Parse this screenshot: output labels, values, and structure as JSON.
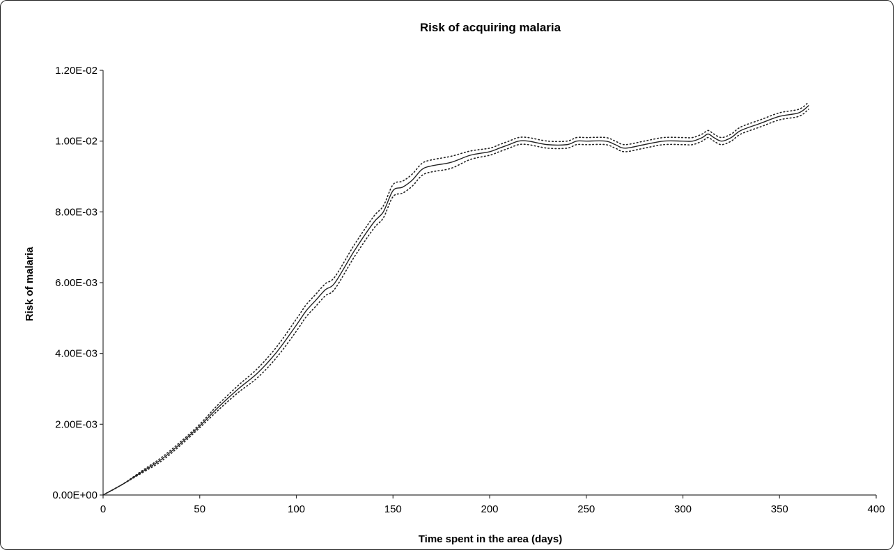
{
  "chart_data": {
    "type": "line",
    "title": "Risk of acquiring malaria",
    "xlabel": "Time spent in the area (days)",
    "ylabel": "Risk of malaria",
    "xlim": [
      0,
      400
    ],
    "ylim": [
      0,
      0.012
    ],
    "x_ticks": [
      0,
      50,
      100,
      150,
      200,
      250,
      300,
      350,
      400
    ],
    "x_tick_labels": [
      "0",
      "50",
      "100",
      "150",
      "200",
      "250",
      "300",
      "350",
      "400"
    ],
    "y_ticks": [
      0,
      0.002,
      0.004,
      0.006,
      0.008,
      0.01,
      0.012
    ],
    "y_tick_labels": [
      "0.00E+00",
      "2.00E-03",
      "4.00E-03",
      "6.00E-03",
      "8.00E-03",
      "1.00E-02",
      "1.20E-02"
    ],
    "grid": false,
    "legend": "none",
    "series": [
      {
        "style": "solid",
        "color": "#222222",
        "x": [
          0,
          10,
          20,
          30,
          40,
          50,
          60,
          70,
          80,
          90,
          100,
          105,
          110,
          115,
          120,
          130,
          140,
          145,
          150,
          155,
          160,
          165,
          170,
          180,
          190,
          200,
          205,
          210,
          215,
          220,
          230,
          240,
          245,
          250,
          260,
          265,
          270,
          280,
          290,
          300,
          305,
          310,
          313,
          316,
          320,
          325,
          330,
          340,
          350,
          360,
          365
        ],
        "y": [
          0,
          0.0003,
          0.00065,
          0.001,
          0.00145,
          0.00195,
          0.0025,
          0.003,
          0.00345,
          0.00405,
          0.0048,
          0.0052,
          0.0055,
          0.0058,
          0.006,
          0.0069,
          0.0077,
          0.008,
          0.0086,
          0.0087,
          0.0089,
          0.0092,
          0.0093,
          0.0094,
          0.0096,
          0.0097,
          0.0098,
          0.0099,
          0.01,
          0.01,
          0.0099,
          0.0099,
          0.01,
          0.01,
          0.01,
          0.0099,
          0.0098,
          0.0099,
          0.01,
          0.01,
          0.01,
          0.0101,
          0.0102,
          0.0101,
          0.01,
          0.0101,
          0.0103,
          0.0105,
          0.0107,
          0.0108,
          0.011
        ]
      },
      {
        "style": "dotted",
        "color": "#222222",
        "x": [
          0,
          10,
          20,
          30,
          40,
          50,
          60,
          70,
          80,
          90,
          100,
          105,
          110,
          115,
          120,
          130,
          140,
          145,
          150,
          155,
          160,
          165,
          170,
          180,
          190,
          200,
          205,
          210,
          215,
          220,
          230,
          240,
          245,
          250,
          260,
          265,
          270,
          280,
          290,
          300,
          305,
          310,
          313,
          316,
          320,
          325,
          330,
          340,
          350,
          360,
          365
        ],
        "y": [
          0,
          0.0003,
          0.00068,
          0.00105,
          0.0015,
          0.002,
          0.00258,
          0.0031,
          0.00358,
          0.0042,
          0.00497,
          0.00537,
          0.00567,
          0.00597,
          0.00617,
          0.00707,
          0.00787,
          0.00817,
          0.00877,
          0.00887,
          0.00907,
          0.00937,
          0.00947,
          0.00957,
          0.00972,
          0.0098,
          0.0099,
          0.01,
          0.0101,
          0.0101,
          0.01,
          0.01,
          0.0101,
          0.0101,
          0.0101,
          0.01,
          0.0099,
          0.01,
          0.0101,
          0.0101,
          0.0101,
          0.0102,
          0.0103,
          0.0102,
          0.0101,
          0.0102,
          0.0104,
          0.0106,
          0.0108,
          0.0109,
          0.0111
        ]
      },
      {
        "style": "dotted",
        "color": "#222222",
        "x": [
          0,
          10,
          20,
          30,
          40,
          50,
          60,
          70,
          80,
          90,
          100,
          105,
          110,
          115,
          120,
          130,
          140,
          145,
          150,
          155,
          160,
          165,
          170,
          180,
          190,
          200,
          205,
          210,
          215,
          220,
          230,
          240,
          245,
          250,
          260,
          265,
          270,
          280,
          290,
          300,
          305,
          310,
          313,
          316,
          320,
          325,
          330,
          340,
          350,
          360,
          365
        ],
        "y": [
          0,
          0.0003,
          0.00062,
          0.00095,
          0.0014,
          0.0019,
          0.00242,
          0.0029,
          0.00332,
          0.0039,
          0.00463,
          0.00503,
          0.00533,
          0.00563,
          0.00583,
          0.00673,
          0.00753,
          0.00783,
          0.00843,
          0.00853,
          0.00873,
          0.00903,
          0.00913,
          0.00923,
          0.00948,
          0.0096,
          0.0097,
          0.0098,
          0.0099,
          0.0099,
          0.0098,
          0.0098,
          0.0099,
          0.0099,
          0.0099,
          0.0098,
          0.0097,
          0.0098,
          0.0099,
          0.0099,
          0.0099,
          0.01,
          0.0101,
          0.01,
          0.0099,
          0.01,
          0.0102,
          0.0104,
          0.0106,
          0.0107,
          0.0109
        ]
      }
    ]
  }
}
